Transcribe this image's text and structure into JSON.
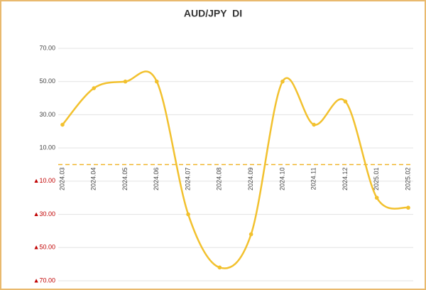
{
  "chart_data": {
    "type": "line",
    "title": "AUD/JPY  DI",
    "categories": [
      "2024.03",
      "2024.04",
      "2024.05",
      "2024.06",
      "2024.07",
      "2024.08",
      "2024.09",
      "2024.10",
      "2024.11",
      "2024.12",
      "2025.01",
      "2025.02"
    ],
    "values": [
      24,
      46,
      50,
      50,
      -30,
      -62,
      -42,
      50,
      24,
      38,
      -20,
      -26
    ],
    "color": "#f2c12e",
    "ylim": [
      -70,
      70
    ],
    "yticks": [
      {
        "value": 70,
        "label": "70.00"
      },
      {
        "value": 50,
        "label": "50.00"
      },
      {
        "value": 30,
        "label": "30.00"
      },
      {
        "value": 10,
        "label": "10.00"
      },
      {
        "value": -10,
        "label": "▲10.00"
      },
      {
        "value": -30,
        "label": "▲30.00"
      },
      {
        "value": -50,
        "label": "▲50.00"
      },
      {
        "value": -70,
        "label": "▲70.00"
      }
    ],
    "grid": true,
    "smooth": true
  }
}
